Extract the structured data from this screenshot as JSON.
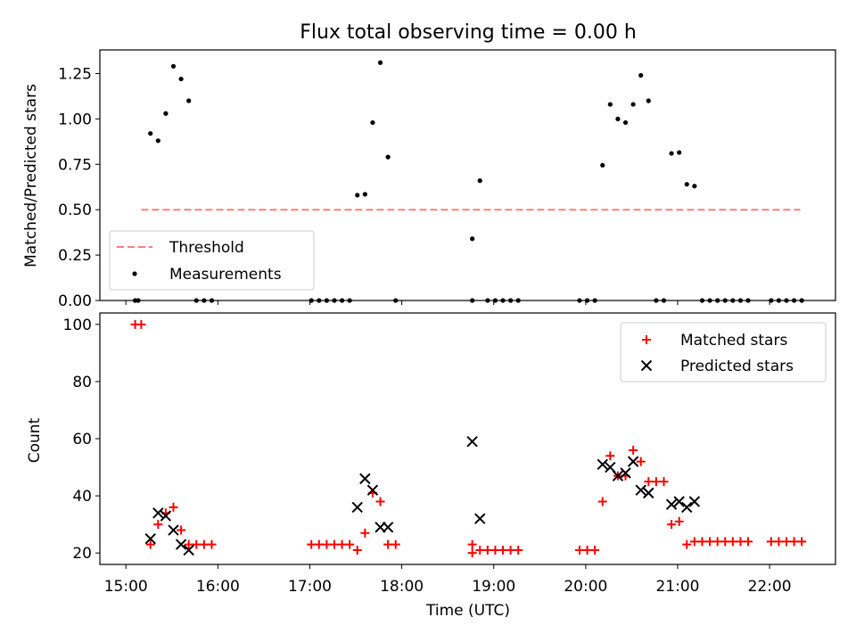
{
  "figure_title": "Flux total observing time = 0.00 h",
  "x_axis": {
    "label": "Time (UTC)",
    "range": [
      "14:43",
      "22:43"
    ],
    "ticks": [
      "15:00",
      "16:00",
      "17:00",
      "18:00",
      "19:00",
      "20:00",
      "21:00",
      "22:00"
    ]
  },
  "chart_data": [
    {
      "type": "scatter",
      "title": "Flux total observing time = 0.00 h",
      "ylabel": "Matched/Predicted stars",
      "ylim": [
        0,
        1.38
      ],
      "yticks": [
        "0.00",
        "0.25",
        "0.50",
        "0.75",
        "1.00",
        "1.25"
      ],
      "legend_position": "lower-left",
      "threshold": {
        "name": "Threshold",
        "value": 0.5,
        "x_range": [
          "15:10",
          "22:20"
        ],
        "color": "#ff7f7f",
        "style": "dashed"
      },
      "series": [
        {
          "name": "Measurements",
          "color": "#000000",
          "marker": "dot",
          "points": [
            [
              "15:06",
              0
            ],
            [
              "15:08",
              0
            ],
            [
              "15:16",
              0.92
            ],
            [
              "15:21",
              0.88
            ],
            [
              "15:26",
              1.03
            ],
            [
              "15:31",
              1.29
            ],
            [
              "15:36",
              1.22
            ],
            [
              "15:41",
              1.1
            ],
            [
              "15:46",
              0
            ],
            [
              "15:51",
              0
            ],
            [
              "15:56",
              0
            ],
            [
              "17:01",
              0
            ],
            [
              "17:06",
              0
            ],
            [
              "17:11",
              0
            ],
            [
              "17:16",
              0
            ],
            [
              "17:21",
              0
            ],
            [
              "17:26",
              0
            ],
            [
              "17:31",
              0.58
            ],
            [
              "17:36",
              0.585
            ],
            [
              "17:41",
              0.98
            ],
            [
              "17:46",
              1.31
            ],
            [
              "17:51",
              0.79
            ],
            [
              "17:56",
              0
            ],
            [
              "18:46",
              0.34
            ],
            [
              "18:46",
              0
            ],
            [
              "18:51",
              0.66
            ],
            [
              "18:56",
              0
            ],
            [
              "19:01",
              0
            ],
            [
              "19:06",
              0
            ],
            [
              "19:11",
              0
            ],
            [
              "19:16",
              0
            ],
            [
              "19:56",
              0
            ],
            [
              "20:01",
              0
            ],
            [
              "20:06",
              0
            ],
            [
              "20:11",
              0.745
            ],
            [
              "20:16",
              1.08
            ],
            [
              "20:21",
              1.0
            ],
            [
              "20:26",
              0.98
            ],
            [
              "20:31",
              1.08
            ],
            [
              "20:36",
              1.24
            ],
            [
              "20:41",
              1.1
            ],
            [
              "20:46",
              0
            ],
            [
              "20:51",
              0
            ],
            [
              "20:56",
              0.81
            ],
            [
              "21:01",
              0.815
            ],
            [
              "21:06",
              0.64
            ],
            [
              "21:11",
              0.63
            ],
            [
              "21:16",
              0
            ],
            [
              "21:21",
              0
            ],
            [
              "21:26",
              0
            ],
            [
              "21:31",
              0
            ],
            [
              "21:36",
              0
            ],
            [
              "21:41",
              0
            ],
            [
              "21:46",
              0
            ],
            [
              "22:01",
              0
            ],
            [
              "22:06",
              0
            ],
            [
              "22:11",
              0
            ],
            [
              "22:16",
              0
            ],
            [
              "22:21",
              0
            ]
          ]
        }
      ]
    },
    {
      "type": "scatter",
      "ylabel": "Count",
      "xlabel": "Time (UTC)",
      "ylim": [
        16,
        104
      ],
      "yticks": [
        "20",
        "40",
        "60",
        "80",
        "100"
      ],
      "legend_position": "top-right",
      "series": [
        {
          "name": "Matched stars",
          "color": "#ff0000",
          "marker": "plus",
          "points": [
            [
              "15:06",
              100
            ],
            [
              "15:10",
              100
            ],
            [
              "15:16",
              23
            ],
            [
              "15:21",
              30
            ],
            [
              "15:26",
              34
            ],
            [
              "15:31",
              36
            ],
            [
              "15:36",
              28
            ],
            [
              "15:41",
              23
            ],
            [
              "15:46",
              23
            ],
            [
              "15:51",
              23
            ],
            [
              "15:56",
              23
            ],
            [
              "17:01",
              23
            ],
            [
              "17:06",
              23
            ],
            [
              "17:11",
              23
            ],
            [
              "17:16",
              23
            ],
            [
              "17:21",
              23
            ],
            [
              "17:26",
              23
            ],
            [
              "17:31",
              21
            ],
            [
              "17:36",
              27
            ],
            [
              "17:41",
              41
            ],
            [
              "17:46",
              38
            ],
            [
              "17:51",
              23
            ],
            [
              "17:56",
              23
            ],
            [
              "18:46",
              20
            ],
            [
              "18:46",
              23
            ],
            [
              "18:51",
              21
            ],
            [
              "18:56",
              21
            ],
            [
              "19:01",
              21
            ],
            [
              "19:06",
              21
            ],
            [
              "19:11",
              21
            ],
            [
              "19:16",
              21
            ],
            [
              "19:56",
              21
            ],
            [
              "20:01",
              21
            ],
            [
              "20:06",
              21
            ],
            [
              "20:11",
              38
            ],
            [
              "20:16",
              54
            ],
            [
              "20:21",
              47
            ],
            [
              "20:26",
              47
            ],
            [
              "20:31",
              56
            ],
            [
              "20:36",
              52
            ],
            [
              "20:41",
              45
            ],
            [
              "20:46",
              45
            ],
            [
              "20:51",
              45
            ],
            [
              "20:56",
              30
            ],
            [
              "21:01",
              31
            ],
            [
              "21:06",
              23
            ],
            [
              "21:11",
              24
            ],
            [
              "21:16",
              24
            ],
            [
              "21:21",
              24
            ],
            [
              "21:26",
              24
            ],
            [
              "21:31",
              24
            ],
            [
              "21:36",
              24
            ],
            [
              "21:41",
              24
            ],
            [
              "21:46",
              24
            ],
            [
              "22:01",
              24
            ],
            [
              "22:06",
              24
            ],
            [
              "22:11",
              24
            ],
            [
              "22:16",
              24
            ],
            [
              "22:21",
              24
            ]
          ]
        },
        {
          "name": "Predicted stars",
          "color": "#000000",
          "marker": "x",
          "points": [
            [
              "15:16",
              25
            ],
            [
              "15:21",
              34
            ],
            [
              "15:26",
              33
            ],
            [
              "15:31",
              28
            ],
            [
              "15:36",
              23
            ],
            [
              "15:41",
              21
            ],
            [
              "17:31",
              36
            ],
            [
              "17:36",
              46
            ],
            [
              "17:41",
              42
            ],
            [
              "17:46",
              29
            ],
            [
              "17:51",
              29
            ],
            [
              "18:46",
              59
            ],
            [
              "18:51",
              32
            ],
            [
              "20:11",
              51
            ],
            [
              "20:16",
              50
            ],
            [
              "20:21",
              47
            ],
            [
              "20:26",
              48
            ],
            [
              "20:31",
              52
            ],
            [
              "20:36",
              42
            ],
            [
              "20:41",
              41
            ],
            [
              "20:56",
              37
            ],
            [
              "21:01",
              38
            ],
            [
              "21:06",
              36
            ],
            [
              "21:11",
              38
            ]
          ]
        }
      ]
    }
  ]
}
